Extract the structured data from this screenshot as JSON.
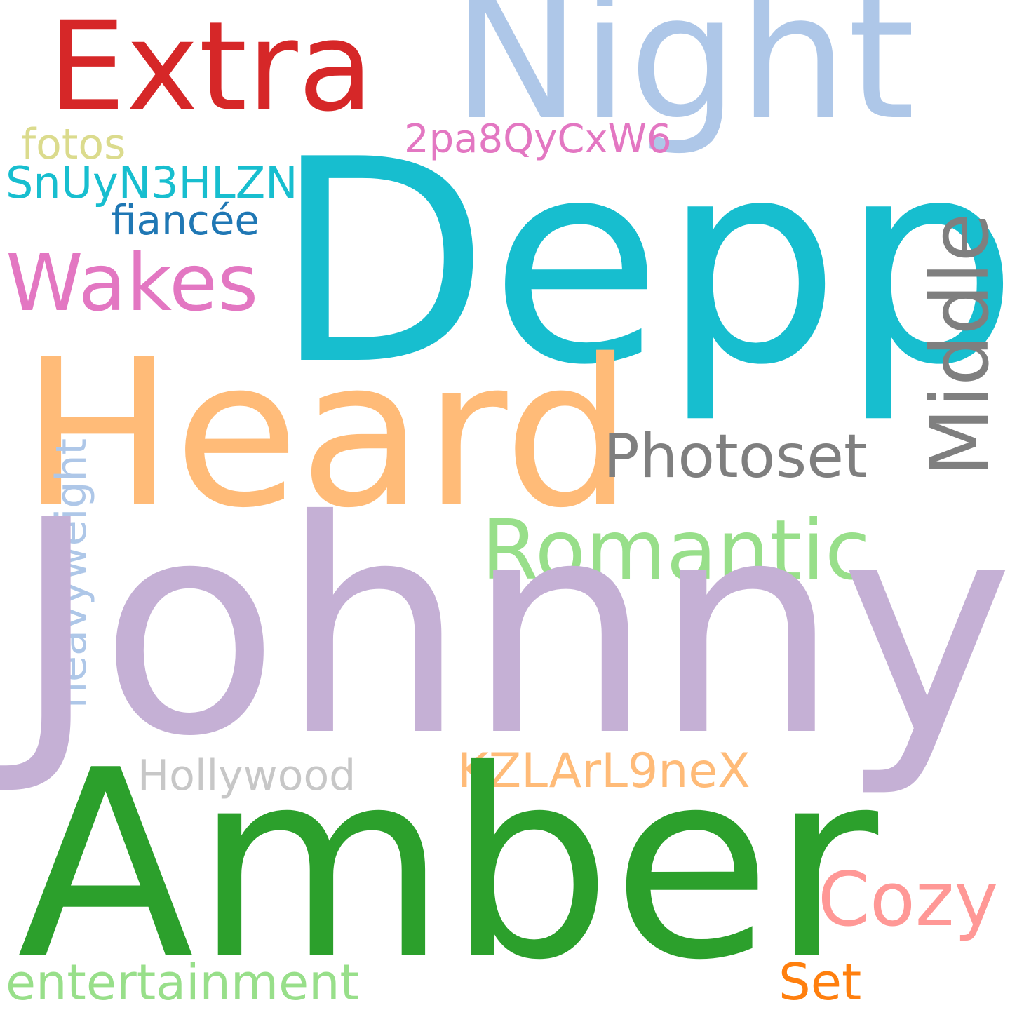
{
  "words": [
    {
      "key": "extra",
      "text": "Extra",
      "color": "#d62728"
    },
    {
      "key": "night",
      "text": "Night",
      "color": "#aec7e8"
    },
    {
      "key": "fotos",
      "text": "fotos",
      "color": "#dbdb8d"
    },
    {
      "key": "code1",
      "text": "2pa8QyCxW6",
      "color": "#e377c2"
    },
    {
      "key": "code2",
      "text": "SnUyN3HLZN",
      "color": "#17becf"
    },
    {
      "key": "fiancee",
      "text": "fiancée",
      "color": "#1f77b4"
    },
    {
      "key": "wakes",
      "text": "Wakes",
      "color": "#e377c2"
    },
    {
      "key": "depp",
      "text": "Depp",
      "color": "#17becf"
    },
    {
      "key": "middle",
      "text": "Middle",
      "color": "#7f7f7f"
    },
    {
      "key": "heard",
      "text": "Heard",
      "color": "#ffbb78"
    },
    {
      "key": "photoset",
      "text": "Photoset",
      "color": "#7f7f7f"
    },
    {
      "key": "heavyweight",
      "text": "heavyweight",
      "color": "#aec7e8"
    },
    {
      "key": "romantic",
      "text": "Romantic",
      "color": "#98df8a"
    },
    {
      "key": "johnny",
      "text": "Johnny",
      "color": "#c5b0d5"
    },
    {
      "key": "hollywood",
      "text": "Hollywood",
      "color": "#c7c7c7"
    },
    {
      "key": "code3",
      "text": "KZLArL9neX",
      "color": "#ffbb78"
    },
    {
      "key": "amber",
      "text": "Amber",
      "color": "#2ca02c"
    },
    {
      "key": "cozy",
      "text": "Cozy",
      "color": "#ff9896"
    },
    {
      "key": "entertainment",
      "text": "entertainment",
      "color": "#98df8a"
    },
    {
      "key": "set",
      "text": "Set",
      "color": "#ff7f0e"
    }
  ]
}
